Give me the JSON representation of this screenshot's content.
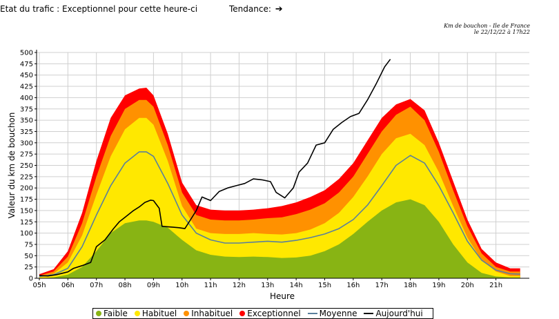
{
  "header": {
    "status_label": "Etat du trafic : ",
    "status_value": "Exceptionnel pour cette heure-ci",
    "trend_label": "Tendance:",
    "trend_icon": "arrow-right-icon",
    "meta_title": "Km de bouchon - Ile de France",
    "meta_date": "le 22/12/22 à 17h22"
  },
  "legend": [
    {
      "label": "Faible",
      "color": "#88b414",
      "kind": "dot"
    },
    {
      "label": "Habituel",
      "color": "#ffe800",
      "kind": "dot"
    },
    {
      "label": "Inhabituel",
      "color": "#ff9100",
      "kind": "dot"
    },
    {
      "label": "Exceptionnel",
      "color": "#ff0000",
      "kind": "dot"
    },
    {
      "label": "Moyenne",
      "color": "#5a7f9c",
      "kind": "line"
    },
    {
      "label": "Aujourd'hui",
      "color": "#000000",
      "kind": "line"
    }
  ],
  "chart_data": {
    "type": "area",
    "xlabel": "Heure",
    "ylabel": "Valeur du  km de bouchon",
    "xlim": [
      5,
      22
    ],
    "ylim": [
      0,
      500
    ],
    "yticks": [
      0,
      25,
      50,
      75,
      100,
      125,
      150,
      175,
      200,
      225,
      250,
      275,
      300,
      325,
      350,
      375,
      400,
      425,
      450,
      475,
      500
    ],
    "xticks": [
      5,
      6,
      7,
      8,
      9,
      10,
      11,
      12,
      13,
      14,
      15,
      16,
      17,
      18,
      19,
      20,
      21
    ],
    "xtick_labels": [
      "05h",
      "06h",
      "07h",
      "08h",
      "09h",
      "10h",
      "11h",
      "12h",
      "13h",
      "14h",
      "15h",
      "16h",
      "17h",
      "18h",
      "19h",
      "20h",
      "21h"
    ],
    "grid": true,
    "x": [
      5.0,
      5.5,
      6.0,
      6.5,
      7.0,
      7.5,
      8.0,
      8.5,
      8.75,
      9.0,
      9.5,
      10.0,
      10.5,
      11.0,
      11.5,
      12.0,
      12.5,
      13.0,
      13.5,
      14.0,
      14.5,
      15.0,
      15.5,
      16.0,
      16.5,
      17.0,
      17.5,
      18.0,
      18.5,
      19.0,
      19.5,
      20.0,
      20.5,
      21.0,
      21.5,
      21.85
    ],
    "bands": [
      {
        "name": "Faible",
        "color": "#88b414",
        "values": [
          0,
          2,
          8,
          25,
          60,
          100,
          122,
          128,
          128,
          125,
          112,
          85,
          62,
          52,
          48,
          47,
          48,
          47,
          45,
          46,
          50,
          60,
          75,
          98,
          125,
          150,
          168,
          175,
          162,
          125,
          75,
          35,
          12,
          4,
          2,
          2
        ]
      },
      {
        "name": "Habituel",
        "color": "#ffe800",
        "values": [
          3,
          10,
          35,
          95,
          185,
          270,
          330,
          355,
          355,
          340,
          260,
          160,
          110,
          100,
          98,
          98,
          100,
          98,
          97,
          100,
          108,
          122,
          145,
          180,
          225,
          275,
          310,
          320,
          295,
          235,
          160,
          90,
          40,
          15,
          5,
          5
        ]
      },
      {
        "name": "Inhabituel",
        "color": "#ff9100",
        "values": [
          6,
          15,
          48,
          122,
          225,
          315,
          375,
          395,
          395,
          380,
          295,
          190,
          140,
          130,
          128,
          128,
          130,
          133,
          135,
          142,
          152,
          166,
          190,
          225,
          275,
          325,
          362,
          380,
          350,
          280,
          195,
          115,
          55,
          25,
          15,
          15
        ]
      },
      {
        "name": "Exceptionnel",
        "color": "#ff0000",
        "values": [
          9,
          20,
          60,
          145,
          260,
          355,
          405,
          420,
          422,
          405,
          320,
          212,
          162,
          152,
          150,
          150,
          152,
          155,
          160,
          168,
          180,
          195,
          220,
          255,
          305,
          355,
          385,
          397,
          372,
          300,
          215,
          130,
          65,
          35,
          22,
          22
        ]
      }
    ],
    "series": [
      {
        "name": "Moyenne",
        "color": "#5a7f9c",
        "x": [
          5.0,
          5.5,
          6.0,
          6.5,
          7.0,
          7.5,
          8.0,
          8.5,
          8.75,
          9.0,
          9.5,
          10.0,
          10.5,
          11.0,
          11.5,
          12.0,
          12.5,
          13.0,
          13.5,
          14.0,
          14.5,
          15.0,
          15.5,
          16.0,
          16.5,
          17.0,
          17.5,
          18.0,
          18.5,
          19.0,
          19.5,
          20.0,
          20.5,
          21.0,
          21.5,
          21.85
        ],
        "values": [
          4,
          8,
          22,
          70,
          140,
          205,
          255,
          280,
          280,
          270,
          210,
          140,
          100,
          85,
          78,
          78,
          80,
          82,
          80,
          84,
          90,
          98,
          110,
          130,
          162,
          205,
          250,
          272,
          255,
          205,
          145,
          82,
          40,
          18,
          10,
          9
        ]
      },
      {
        "name": "Aujourd'hui",
        "color": "#000000",
        "x": [
          5.0,
          5.3,
          5.6,
          6.0,
          6.2,
          6.5,
          6.8,
          7.0,
          7.3,
          7.6,
          7.8,
          8.0,
          8.3,
          8.5,
          8.7,
          8.9,
          9.0,
          9.2,
          9.3,
          9.5,
          9.7,
          9.9,
          10.1,
          10.3,
          10.5,
          10.7,
          11.0,
          11.3,
          11.6,
          11.9,
          12.2,
          12.5,
          12.8,
          13.1,
          13.3,
          13.6,
          13.9,
          14.1,
          14.4,
          14.7,
          15.0,
          15.3,
          15.6,
          15.9,
          16.2,
          16.5,
          16.8,
          17.1,
          17.3
        ],
        "values": [
          6,
          5,
          8,
          14,
          22,
          28,
          35,
          70,
          85,
          110,
          125,
          135,
          150,
          158,
          168,
          173,
          172,
          155,
          115,
          114,
          113,
          112,
          110,
          130,
          150,
          180,
          172,
          192,
          200,
          205,
          210,
          220,
          218,
          214,
          190,
          178,
          200,
          235,
          255,
          295,
          300,
          330,
          345,
          358,
          365,
          395,
          430,
          468,
          485
        ]
      }
    ]
  }
}
